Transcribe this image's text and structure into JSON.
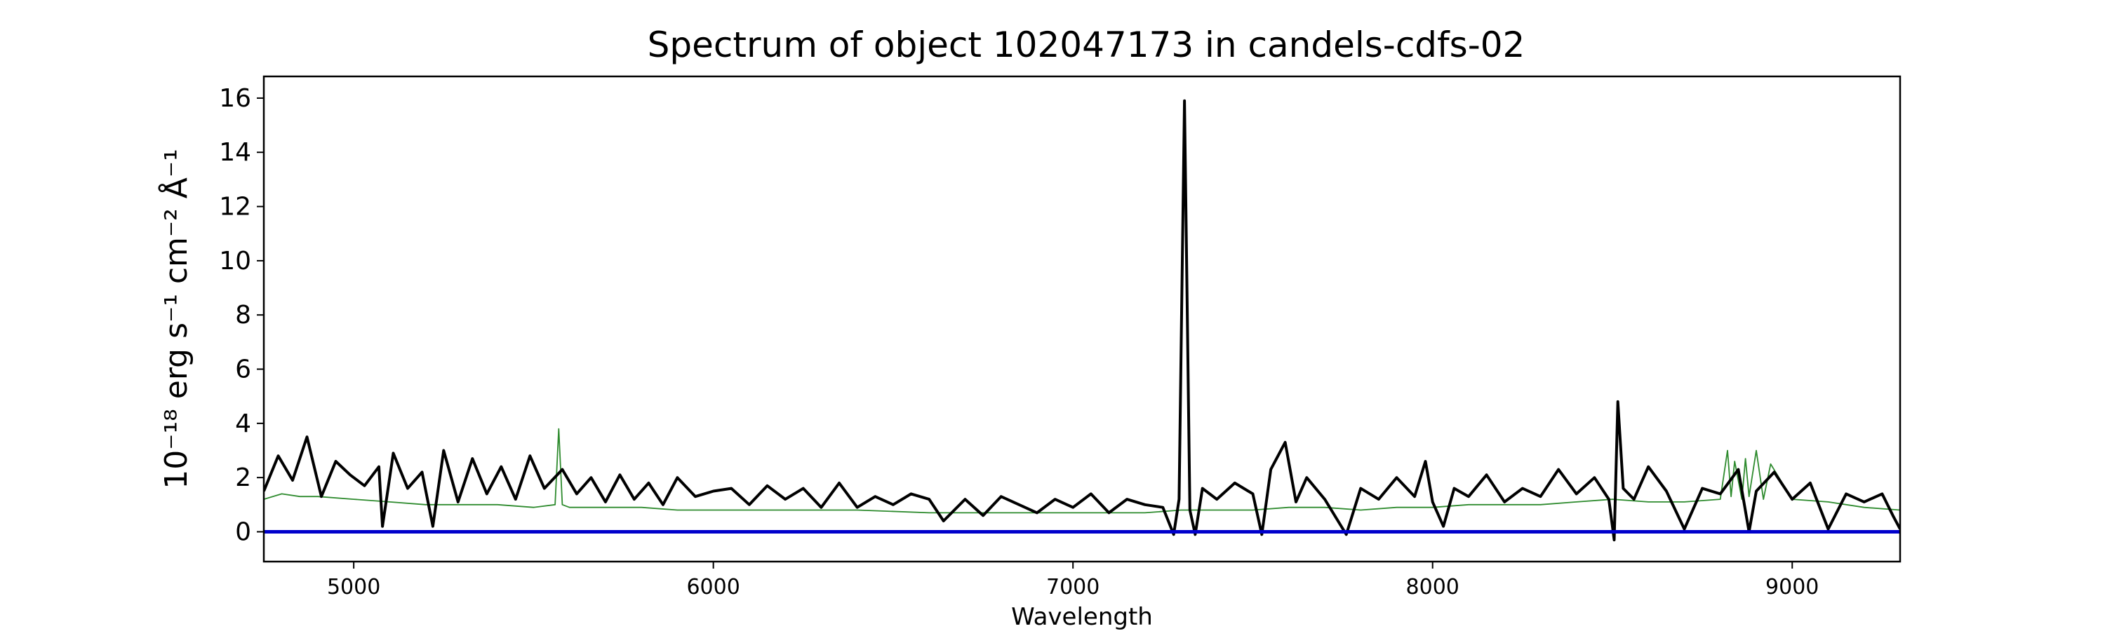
{
  "chart_data": {
    "type": "line",
    "title": "Spectrum of object 102047173 in candels-cdfs-02",
    "xlabel": "Wavelength",
    "ylabel": "10⁻¹⁸ erg s⁻¹ cm⁻² Å⁻¹",
    "xlim": [
      4750,
      9300
    ],
    "ylim": [
      -1.1,
      16.8
    ],
    "xticks": [
      5000,
      6000,
      7000,
      8000,
      9000
    ],
    "xtick_labels": [
      "5000",
      "6000",
      "7000",
      "8000",
      "9000"
    ],
    "yticks": [
      0,
      2,
      4,
      6,
      8,
      10,
      12,
      14,
      16
    ],
    "ytick_labels": [
      "0",
      "2",
      "4",
      "6",
      "8",
      "10",
      "12",
      "14",
      "16"
    ],
    "grid": false,
    "legend": "none",
    "colors": {
      "flux": "#000000",
      "noise": "#2e8b2e",
      "zero_line": "#0000cc"
    },
    "series": [
      {
        "role": "flux",
        "x": [
          4750,
          4790,
          4830,
          4870,
          4910,
          4950,
          4990,
          5030,
          5070,
          5080,
          5110,
          5150,
          5190,
          5220,
          5250,
          5290,
          5330,
          5370,
          5410,
          5450,
          5490,
          5530,
          5580,
          5620,
          5660,
          5700,
          5740,
          5780,
          5820,
          5860,
          5900,
          5950,
          6000,
          6050,
          6100,
          6150,
          6200,
          6250,
          6300,
          6350,
          6400,
          6450,
          6500,
          6550,
          6600,
          6640,
          6700,
          6750,
          6800,
          6850,
          6900,
          6950,
          7000,
          7050,
          7100,
          7150,
          7200,
          7250,
          7280,
          7295,
          7310,
          7325,
          7340,
          7360,
          7400,
          7450,
          7500,
          7525,
          7550,
          7590,
          7620,
          7650,
          7700,
          7760,
          7800,
          7850,
          7900,
          7950,
          7980,
          8000,
          8030,
          8060,
          8100,
          8150,
          8200,
          8250,
          8300,
          8350,
          8400,
          8450,
          8490,
          8505,
          8515,
          8530,
          8560,
          8600,
          8650,
          8700,
          8750,
          8800,
          8850,
          8880,
          8900,
          8950,
          9000,
          9050,
          9100,
          9150,
          9200,
          9250,
          9280,
          9300
        ],
        "y": [
          1.5,
          2.8,
          1.9,
          3.5,
          1.3,
          2.6,
          2.1,
          1.7,
          2.4,
          0.2,
          2.9,
          1.6,
          2.2,
          0.2,
          3.0,
          1.1,
          2.7,
          1.4,
          2.4,
          1.2,
          2.8,
          1.6,
          2.3,
          1.4,
          2.0,
          1.1,
          2.1,
          1.2,
          1.8,
          1.0,
          2.0,
          1.3,
          1.5,
          1.6,
          1.0,
          1.7,
          1.2,
          1.6,
          0.9,
          1.8,
          0.9,
          1.3,
          1.0,
          1.4,
          1.2,
          0.4,
          1.2,
          0.6,
          1.3,
          1.0,
          0.7,
          1.2,
          0.9,
          1.4,
          0.7,
          1.2,
          1.0,
          0.9,
          -0.1,
          1.2,
          15.9,
          0.8,
          -0.1,
          1.6,
          1.2,
          1.8,
          1.4,
          -0.1,
          2.3,
          3.3,
          1.1,
          2.0,
          1.2,
          -0.1,
          1.6,
          1.2,
          2.0,
          1.3,
          2.6,
          1.1,
          0.2,
          1.6,
          1.3,
          2.1,
          1.1,
          1.6,
          1.3,
          2.3,
          1.4,
          2.0,
          1.2,
          -0.3,
          4.8,
          1.6,
          1.2,
          2.4,
          1.5,
          0.1,
          1.6,
          1.4,
          2.3,
          0.0,
          1.5,
          2.2,
          1.2,
          1.8,
          0.1,
          1.4,
          1.1,
          1.4,
          0.6,
          0.1
        ]
      },
      {
        "role": "noise",
        "x": [
          4750,
          4800,
          4850,
          4900,
          5000,
          5100,
          5200,
          5300,
          5400,
          5500,
          5560,
          5570,
          5580,
          5600,
          5700,
          5800,
          5900,
          6000,
          6200,
          6400,
          6600,
          6800,
          7000,
          7200,
          7300,
          7400,
          7500,
          7600,
          7700,
          7800,
          7900,
          8000,
          8100,
          8200,
          8300,
          8400,
          8500,
          8600,
          8700,
          8800,
          8820,
          8830,
          8840,
          8860,
          8870,
          8880,
          8900,
          8920,
          8940,
          9000,
          9100,
          9200,
          9300
        ],
        "y": [
          1.2,
          1.4,
          1.3,
          1.3,
          1.2,
          1.1,
          1.0,
          1.0,
          1.0,
          0.9,
          1.0,
          3.8,
          1.0,
          0.9,
          0.9,
          0.9,
          0.8,
          0.8,
          0.8,
          0.8,
          0.7,
          0.7,
          0.7,
          0.7,
          0.8,
          0.8,
          0.8,
          0.9,
          0.9,
          0.8,
          0.9,
          0.9,
          1.0,
          1.0,
          1.0,
          1.1,
          1.2,
          1.1,
          1.1,
          1.2,
          3.0,
          1.3,
          2.6,
          1.2,
          2.7,
          1.3,
          3.0,
          1.2,
          2.5,
          1.2,
          1.1,
          0.9,
          0.8
        ]
      },
      {
        "role": "zero_line",
        "x": [
          4750,
          9300
        ],
        "y": [
          0,
          0
        ]
      }
    ]
  }
}
